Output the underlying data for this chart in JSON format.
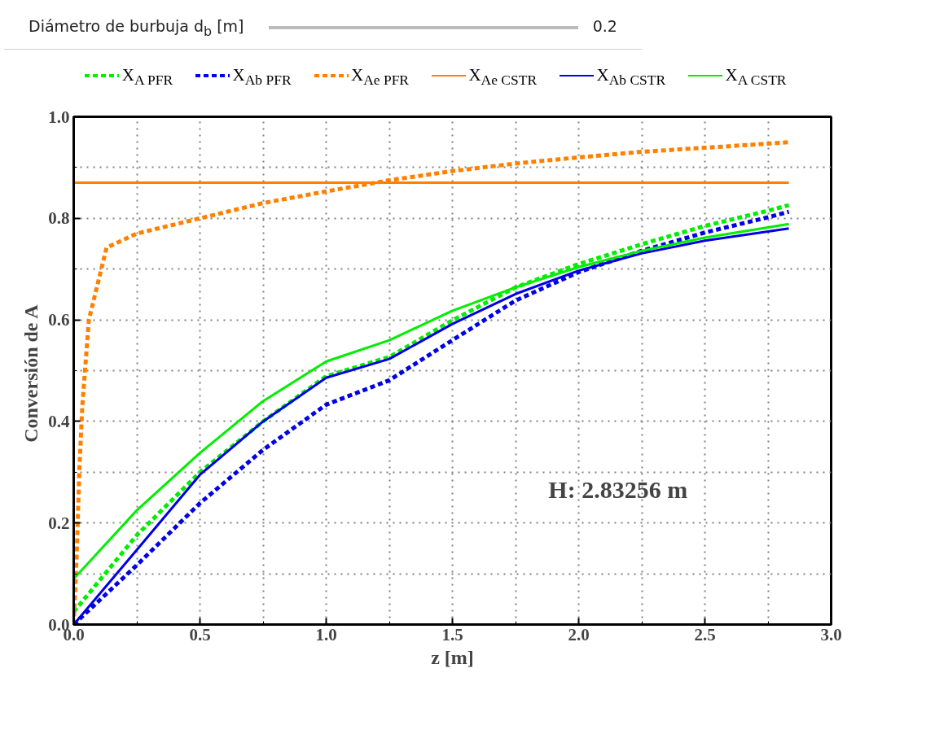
{
  "chart_data": {
    "type": "line",
    "xlabel": "z [m]",
    "ylabel": "Conversión  de A",
    "xlim": [
      0,
      3
    ],
    "ylim": [
      0,
      1
    ],
    "xticks": [
      {
        "value": 0,
        "label": "0.0"
      },
      0.5,
      {
        "value": 1,
        "label": "1.0"
      },
      1.5,
      {
        "value": 2,
        "label": "2.0"
      },
      2.5,
      {
        "value": 3,
        "label": "3.0"
      }
    ],
    "yticks": [
      {
        "value": 0,
        "label": "0.0"
      },
      0.2,
      0.4,
      0.6,
      0.8,
      {
        "value": 1,
        "label": "1.0"
      }
    ],
    "grid": true,
    "legend": "top",
    "annotations": [
      "Diámetro de burbuja d$_{b}$ [m]",
      "0.2",
      "H:   2.83256 m"
    ],
    "series": [
      {
        "name": "X$_{A PFR}$",
        "color": "#00ee00",
        "line_style": "dashed",
        "x": [
          0,
          0.25,
          0.5,
          0.75,
          1.0,
          1.25,
          1.5,
          1.75,
          2.0,
          2.25,
          2.5,
          2.75,
          2.83256
        ],
        "values": [
          0.025,
          0.176,
          0.3,
          0.4,
          0.489,
          0.527,
          0.599,
          0.664,
          0.71,
          0.749,
          0.785,
          0.815,
          0.826
        ]
      },
      {
        "name": "X$_{Ab PFR}$",
        "color": "#0000e6",
        "line_style": "dashed",
        "x": [
          0,
          0.25,
          0.5,
          0.75,
          1.0,
          1.25,
          1.5,
          1.75,
          2.0,
          2.25,
          2.5,
          2.75,
          2.83256
        ],
        "values": [
          0.0,
          0.117,
          0.239,
          0.344,
          0.433,
          0.481,
          0.56,
          0.638,
          0.694,
          0.736,
          0.772,
          0.802,
          0.813
        ]
      },
      {
        "name": "X$_{Ae PFR}$",
        "color": "#ff8000",
        "line_style": "dashed",
        "x": [
          0,
          0.012,
          0.022,
          0.034,
          0.06,
          0.13,
          0.25,
          0.5,
          0.75,
          1.0,
          1.25,
          1.5,
          1.75,
          2.0,
          2.25,
          2.5,
          2.75,
          2.83256
        ],
        "values": [
          0,
          0.14,
          0.3,
          0.43,
          0.6,
          0.742,
          0.77,
          0.8,
          0.83,
          0.853,
          0.875,
          0.893,
          0.908,
          0.92,
          0.931,
          0.939,
          0.947,
          0.95
        ]
      },
      {
        "name": "X$_{Ae CSTR}$",
        "color": "#ff8000",
        "line_style": "solid",
        "x": [
          0,
          2.83256
        ],
        "values": [
          0.87,
          0.87
        ]
      },
      {
        "name": "X$_{Ab CSTR}$",
        "color": "#0000e6",
        "line_style": "solid",
        "x": [
          0,
          0.25,
          0.5,
          0.75,
          1.0,
          1.25,
          1.5,
          1.75,
          2.0,
          2.25,
          2.5,
          2.75,
          2.83256
        ],
        "values": [
          0,
          0.147,
          0.295,
          0.4,
          0.486,
          0.523,
          0.592,
          0.651,
          0.697,
          0.731,
          0.756,
          0.774,
          0.78
        ]
      },
      {
        "name": "X$_{A CSTR}$",
        "color": "#00ee00",
        "line_style": "solid",
        "x": [
          0,
          0.25,
          0.5,
          0.75,
          1.0,
          1.25,
          1.5,
          1.75,
          2.0,
          2.25,
          2.5,
          2.75,
          2.83256
        ],
        "values": [
          0.09,
          0.225,
          0.338,
          0.44,
          0.518,
          0.56,
          0.618,
          0.664,
          0.704,
          0.736,
          0.762,
          0.782,
          0.789
        ]
      }
    ]
  }
}
